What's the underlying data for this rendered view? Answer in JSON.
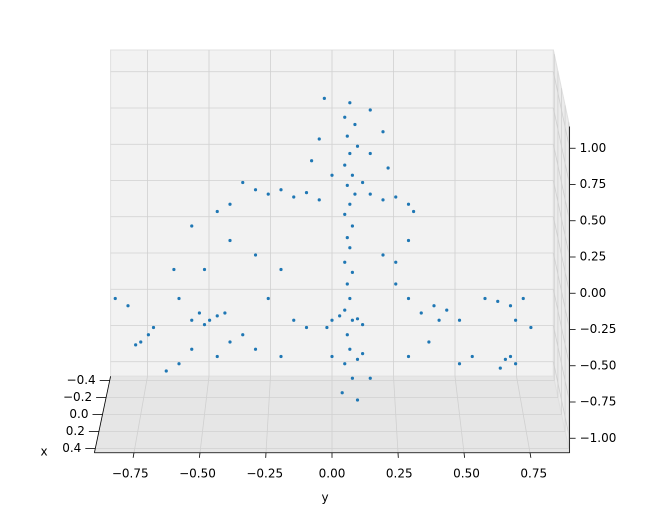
{
  "chart_data": {
    "type": "scatter3d",
    "x_label": "x",
    "y_label": "y",
    "color": "#1f77b4",
    "grid": true,
    "xlim": [
      -0.45,
      0.45
    ],
    "xticks": [
      {
        "value": -0.4,
        "label": "−0.4"
      },
      {
        "value": -0.2,
        "label": "−0.2"
      },
      {
        "value": 0,
        "label": "0.0"
      },
      0.2,
      0.4
    ],
    "ylim": [
      -0.9,
      0.9
    ],
    "yticks": [
      {
        "value": -0.75,
        "label": "−0.75"
      },
      {
        "value": -0.5,
        "label": "−0.50"
      },
      {
        "value": -0.25,
        "label": "−0.25"
      },
      {
        "value": 0,
        "label": "0.00"
      },
      0.25,
      {
        "value": 0.5,
        "label": "0.50"
      },
      0.75
    ],
    "zlim": [
      -1.1,
      1.15
    ],
    "zticks": [
      {
        "value": -1,
        "label": "−1.00"
      },
      {
        "value": -0.75,
        "label": "−0.75"
      },
      {
        "value": -0.5,
        "label": "−0.50"
      },
      {
        "value": -0.25,
        "label": "−0.25"
      },
      {
        "value": 0,
        "label": "0.00"
      },
      0.25,
      {
        "value": 0.5,
        "label": "0.50"
      },
      0.75,
      {
        "value": 1,
        "label": "1.00"
      }
    ],
    "y": [
      0.07,
      0.05,
      0.09,
      0.06,
      0.1,
      0.07,
      0.05,
      0.08,
      0.06,
      0.09,
      0.07,
      0.05,
      0.08,
      0.06,
      0.07,
      0.05,
      0.08,
      0.06,
      0.07,
      0.05,
      0.08,
      0.06,
      0.07,
      0.05,
      0.08,
      0.04,
      -0.03,
      0.15,
      0.2,
      -0.05,
      0.15,
      0.22,
      -0.08,
      0.0,
      0.12,
      -0.35,
      -0.3,
      -0.25,
      -0.2,
      -0.15,
      -0.1,
      -0.05,
      0.15,
      0.2,
      0.25,
      0.3,
      0.32,
      -0.4,
      -0.45,
      -0.55,
      -0.5,
      -0.52,
      -0.48,
      -0.45,
      -0.5,
      -0.55,
      -0.42,
      -0.6,
      -0.62,
      -0.7,
      -0.75,
      -0.77,
      -0.72,
      -0.8,
      -0.85,
      -0.65,
      -0.6,
      -0.4,
      -0.35,
      -0.3,
      -0.25,
      -0.2,
      -0.3,
      -0.4,
      -0.15,
      -0.1,
      -0.2,
      -0.45,
      -0.55,
      0.0,
      0.03,
      0.1,
      0.12,
      -0.02,
      0.0,
      0.1,
      0.12,
      0.15,
      0.1,
      0.25,
      0.3,
      0.35,
      0.4,
      0.42,
      0.45,
      0.5,
      0.38,
      0.3,
      0.5,
      0.55,
      0.6,
      0.65,
      0.7,
      0.75,
      0.72,
      0.68,
      0.7,
      0.72,
      0.66,
      0.78,
      0.3,
      0.2,
      0.25
    ],
    "z": [
      1.05,
      0.95,
      0.9,
      0.82,
      0.75,
      0.7,
      0.62,
      0.55,
      0.48,
      0.42,
      0.35,
      0.28,
      0.2,
      0.12,
      0.05,
      -0.05,
      -0.12,
      -0.2,
      -0.3,
      -0.38,
      -0.45,
      -0.55,
      -0.65,
      -0.75,
      -0.85,
      -0.95,
      1.08,
      1.0,
      0.85,
      0.8,
      0.7,
      0.6,
      0.65,
      0.55,
      0.5,
      0.5,
      0.45,
      0.42,
      0.45,
      0.4,
      0.43,
      0.38,
      0.42,
      0.38,
      0.4,
      0.35,
      0.3,
      0.35,
      0.3,
      0.2,
      -0.1,
      -0.4,
      -0.45,
      -0.42,
      -0.48,
      -0.45,
      -0.4,
      -0.3,
      -0.1,
      -0.5,
      -0.6,
      -0.62,
      -0.55,
      -0.35,
      -0.3,
      -0.8,
      -0.75,
      -0.6,
      -0.55,
      -0.65,
      -0.3,
      -0.1,
      0.0,
      0.1,
      -0.45,
      -0.5,
      -0.7,
      -0.7,
      -0.65,
      -0.45,
      -0.42,
      -0.44,
      -0.48,
      -0.5,
      -0.7,
      -0.72,
      -0.68,
      -0.85,
      -1.0,
      -0.2,
      -0.3,
      -0.4,
      -0.35,
      -0.45,
      -0.38,
      -0.45,
      -0.6,
      -0.7,
      -0.75,
      -0.7,
      -0.3,
      -0.32,
      -0.35,
      -0.3,
      -0.45,
      -0.72,
      -0.7,
      -0.75,
      -0.78,
      -0.5,
      0.1,
      0.0,
      -0.05
    ]
  }
}
